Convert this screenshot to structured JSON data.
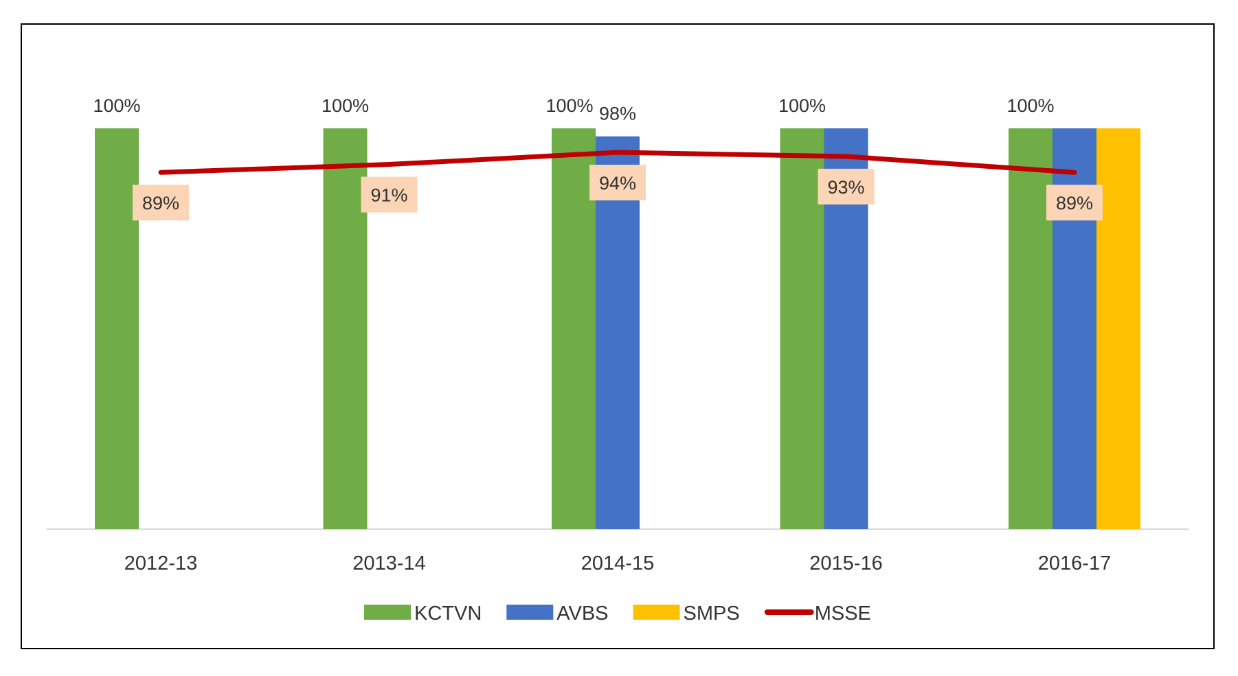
{
  "chart_data": {
    "type": "bar",
    "title": "",
    "xlabel": "",
    "ylabel": "",
    "ylim": [
      0,
      1
    ],
    "grid": false,
    "legend_position": "bottom",
    "categories": [
      "2012-13",
      "2013-14",
      "2014-15",
      "2015-16",
      "2016-17"
    ],
    "series": [
      {
        "name": "KCTVN",
        "kind": "bar",
        "color": "#70AD47",
        "values": [
          1.0,
          1.0,
          1.0,
          1.0,
          1.0
        ],
        "labels": [
          "100%",
          "100%",
          "100%",
          "100%",
          "100%"
        ]
      },
      {
        "name": "AVBS",
        "kind": "bar",
        "color": "#4472C4",
        "values": [
          null,
          null,
          0.98,
          1.0,
          1.0
        ],
        "labels": [
          null,
          null,
          "98%",
          null,
          null
        ]
      },
      {
        "name": "SMPS",
        "kind": "bar",
        "color": "#FFC000",
        "values": [
          null,
          null,
          null,
          null,
          1.0
        ],
        "labels": [
          null,
          null,
          null,
          null,
          null
        ]
      },
      {
        "name": "MSSE",
        "kind": "line",
        "color": "#C00000",
        "values": [
          0.89,
          0.91,
          0.94,
          0.93,
          0.89
        ],
        "labels": [
          "89%",
          "91%",
          "94%",
          "93%",
          "89%"
        ]
      }
    ],
    "label_box_color": "#FBD5B5"
  }
}
